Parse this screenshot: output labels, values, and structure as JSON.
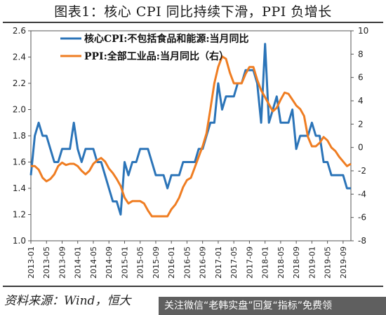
{
  "title": "图表1：核心 CPI 同比持续下滑，PPI 负增长",
  "source": "资料来源：Wind，恒大",
  "banner": "关注微信“老韩实盘”回复“指标”免费领",
  "chart_data": {
    "type": "line",
    "legend_position": "top-left",
    "grid": false,
    "x": [
      "2013-01",
      "2013-02",
      "2013-03",
      "2013-04",
      "2013-05",
      "2013-06",
      "2013-07",
      "2013-08",
      "2013-09",
      "2013-10",
      "2013-11",
      "2013-12",
      "2014-01",
      "2014-02",
      "2014-03",
      "2014-04",
      "2014-05",
      "2014-06",
      "2014-07",
      "2014-08",
      "2014-09",
      "2014-10",
      "2014-11",
      "2014-12",
      "2015-01",
      "2015-02",
      "2015-03",
      "2015-04",
      "2015-05",
      "2015-06",
      "2015-07",
      "2015-08",
      "2015-09",
      "2015-10",
      "2015-11",
      "2015-12",
      "2016-01",
      "2016-02",
      "2016-03",
      "2016-04",
      "2016-05",
      "2016-06",
      "2016-07",
      "2016-08",
      "2016-09",
      "2016-10",
      "2016-11",
      "2016-12",
      "2017-01",
      "2017-02",
      "2017-03",
      "2017-04",
      "2017-05",
      "2017-06",
      "2017-07",
      "2017-08",
      "2017-09",
      "2017-10",
      "2017-11",
      "2017-12",
      "2018-01",
      "2018-02",
      "2018-03",
      "2018-04",
      "2018-05",
      "2018-06",
      "2018-07",
      "2018-08",
      "2018-09",
      "2018-10",
      "2018-11",
      "2018-12",
      "2019-01",
      "2019-02",
      "2019-03",
      "2019-04",
      "2019-05",
      "2019-06",
      "2019-07",
      "2019-08",
      "2019-09",
      "2019-10",
      "2019-11"
    ],
    "x_tick_labels": [
      "2013-01",
      "2013-05",
      "2013-09",
      "2014-01",
      "2014-05",
      "2014-09",
      "2015-01",
      "2015-05",
      "2015-09",
      "2016-01",
      "2016-05",
      "2016-09",
      "2017-01",
      "2017-05",
      "2017-09",
      "2018-01",
      "2018-05",
      "2018-09",
      "2019-01",
      "2019-05",
      "2019-09"
    ],
    "y_left": {
      "min": 1.0,
      "max": 2.6,
      "ticks": [
        "1.0",
        "1.2",
        "1.4",
        "1.6",
        "1.8",
        "2.0",
        "2.2",
        "2.4",
        "2.6"
      ]
    },
    "y_right": {
      "min": -8,
      "max": 10,
      "ticks": [
        "-8",
        "-6",
        "-4",
        "-2",
        "0",
        "2",
        "4",
        "6",
        "8",
        "10"
      ]
    },
    "series": [
      {
        "name": "核心CPI:不包括食品和能源:当月同比",
        "axis": "left",
        "color": "#2b74b8",
        "values": [
          1.5,
          1.8,
          1.9,
          1.8,
          1.8,
          1.7,
          1.6,
          1.6,
          1.7,
          1.7,
          1.7,
          1.9,
          1.7,
          1.6,
          1.7,
          1.7,
          1.7,
          1.6,
          1.6,
          1.5,
          1.4,
          1.3,
          1.3,
          1.2,
          1.6,
          1.5,
          1.6,
          1.6,
          1.7,
          1.7,
          1.7,
          1.6,
          1.5,
          1.5,
          1.5,
          1.4,
          1.5,
          1.5,
          1.5,
          1.6,
          1.6,
          1.6,
          1.6,
          1.7,
          1.7,
          1.8,
          1.9,
          1.9,
          2.2,
          2.0,
          2.1,
          2.1,
          2.1,
          2.2,
          2.2,
          2.3,
          2.3,
          2.3,
          2.2,
          1.9,
          2.5,
          1.9,
          2.0,
          2.1,
          1.9,
          1.9,
          1.9,
          2.0,
          1.7,
          1.8,
          1.8,
          1.8,
          1.9,
          1.8,
          1.8,
          1.6,
          1.6,
          1.5,
          1.5,
          1.5,
          1.5,
          1.4,
          1.4
        ]
      },
      {
        "name": "PPI:全部工业品:当月同比（右）",
        "axis": "right",
        "color": "#ef7d22",
        "values": [
          -1.6,
          -1.6,
          -1.9,
          -2.6,
          -2.9,
          -2.7,
          -2.3,
          -1.6,
          -1.3,
          -1.5,
          -1.4,
          -1.4,
          -1.6,
          -2.0,
          -2.3,
          -2.0,
          -1.4,
          -1.1,
          -0.9,
          -1.2,
          -1.8,
          -2.2,
          -2.7,
          -3.3,
          -4.3,
          -4.8,
          -4.6,
          -4.6,
          -4.6,
          -4.8,
          -5.4,
          -5.9,
          -5.9,
          -5.9,
          -5.9,
          -5.9,
          -5.3,
          -4.9,
          -4.3,
          -3.4,
          -2.8,
          -2.6,
          -1.7,
          -0.8,
          0.1,
          1.2,
          3.3,
          5.5,
          6.9,
          7.8,
          7.6,
          6.4,
          5.5,
          5.5,
          5.5,
          6.3,
          6.9,
          6.9,
          5.8,
          4.9,
          4.3,
          3.7,
          3.1,
          3.4,
          4.1,
          4.7,
          4.6,
          4.1,
          3.6,
          3.3,
          2.7,
          0.9,
          0.1,
          0.1,
          0.4,
          0.9,
          0.6,
          0.0,
          -0.3,
          -0.8,
          -1.2,
          -1.6,
          -1.4
        ]
      }
    ]
  }
}
